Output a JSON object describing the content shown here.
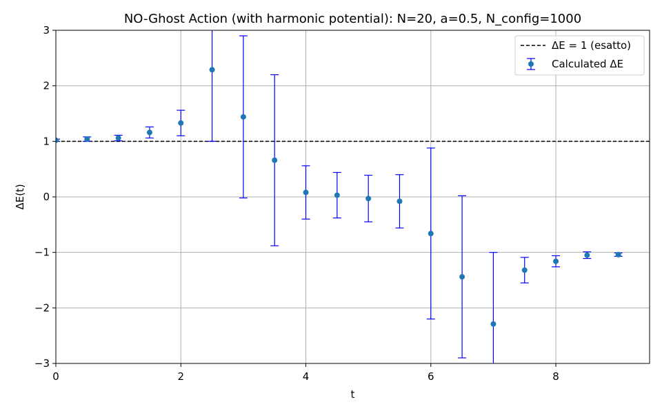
{
  "chart_data": {
    "type": "scatter",
    "title": "NO-Ghost Action (with harmonic potential): N=20, a=0.5, N_config=1000",
    "xlabel": "t",
    "ylabel": "ΔE(t)",
    "xlim": [
      0,
      9.5
    ],
    "ylim": [
      -3,
      3
    ],
    "xticks": [
      0,
      2,
      4,
      6,
      8
    ],
    "yticks": [
      -3,
      -2,
      -1,
      0,
      1,
      2,
      3
    ],
    "grid": true,
    "legend_position": "top-right",
    "colors": {
      "points": "#1f77b4",
      "errorbars": "#0000ff",
      "reference_line": "#000000",
      "grid": "#b0b0b0"
    },
    "reference_line": {
      "name": "ΔE = 1 (esatto)",
      "y": 1,
      "style": "dashed"
    },
    "series": [
      {
        "name": "Calculated ΔE",
        "x": [
          0.0,
          0.5,
          1.0,
          1.5,
          2.0,
          2.5,
          3.0,
          3.5,
          4.0,
          4.5,
          5.0,
          5.5,
          6.0,
          6.5,
          7.0,
          7.5,
          8.0,
          8.5,
          9.0
        ],
        "y": [
          1.02,
          1.04,
          1.06,
          1.16,
          1.33,
          2.29,
          1.44,
          0.66,
          0.08,
          0.03,
          -0.03,
          -0.08,
          -0.66,
          -1.44,
          -2.29,
          -1.32,
          -1.16,
          -1.05,
          -1.04
        ],
        "err": [
          0.02,
          0.04,
          0.05,
          0.1,
          0.23,
          1.29,
          1.46,
          1.54,
          0.48,
          0.41,
          0.42,
          0.48,
          1.54,
          1.46,
          1.29,
          0.23,
          0.1,
          0.06,
          0.03
        ]
      }
    ]
  }
}
